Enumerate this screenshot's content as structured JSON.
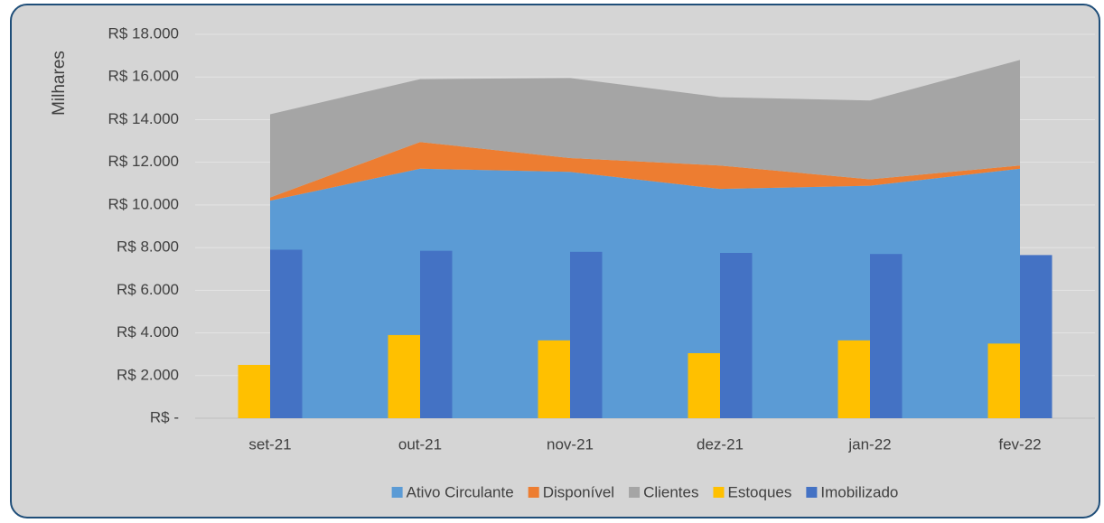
{
  "chart_data": {
    "type": "combo",
    "y_axis_label": "Milhares",
    "categories": [
      "set-21",
      "out-21",
      "nov-21",
      "dez-21",
      "jan-22",
      "fev-22"
    ],
    "series": [
      {
        "name": "Ativo Circulante",
        "type": "area",
        "color": "#5b9bd5",
        "values": [
          10200,
          11700,
          11550,
          10750,
          10900,
          11700
        ]
      },
      {
        "name": "Disponível",
        "type": "area",
        "color": "#ed7d31",
        "values": [
          150,
          1250,
          650,
          1100,
          300,
          150
        ]
      },
      {
        "name": "Clientes",
        "type": "area",
        "color": "#a5a5a5",
        "values": [
          3900,
          2950,
          3750,
          3200,
          3700,
          4950
        ]
      },
      {
        "name": "Estoques",
        "type": "bar",
        "color": "#ffc000",
        "values": [
          2500,
          3900,
          3650,
          3050,
          3650,
          3500
        ]
      },
      {
        "name": "Imobilizado",
        "type": "bar",
        "color": "#4472c4",
        "values": [
          7900,
          7850,
          7800,
          7750,
          7700,
          7650
        ]
      }
    ],
    "ylim": [
      0,
      18000
    ],
    "yticks": [
      {
        "value": 0,
        "label": "R$ -"
      },
      {
        "value": 2000,
        "label": "R$ 2.000"
      },
      {
        "value": 4000,
        "label": "R$ 4.000"
      },
      {
        "value": 6000,
        "label": "R$ 6.000"
      },
      {
        "value": 8000,
        "label": "R$ 8.000"
      },
      {
        "value": 10000,
        "label": "R$ 10.000"
      },
      {
        "value": 12000,
        "label": "R$ 12.000"
      },
      {
        "value": 14000,
        "label": "R$ 14.000"
      },
      {
        "value": 16000,
        "label": "R$ 16.000"
      },
      {
        "value": 18000,
        "label": "R$ 18.000"
      }
    ],
    "grid": true,
    "legend": "bottom"
  }
}
